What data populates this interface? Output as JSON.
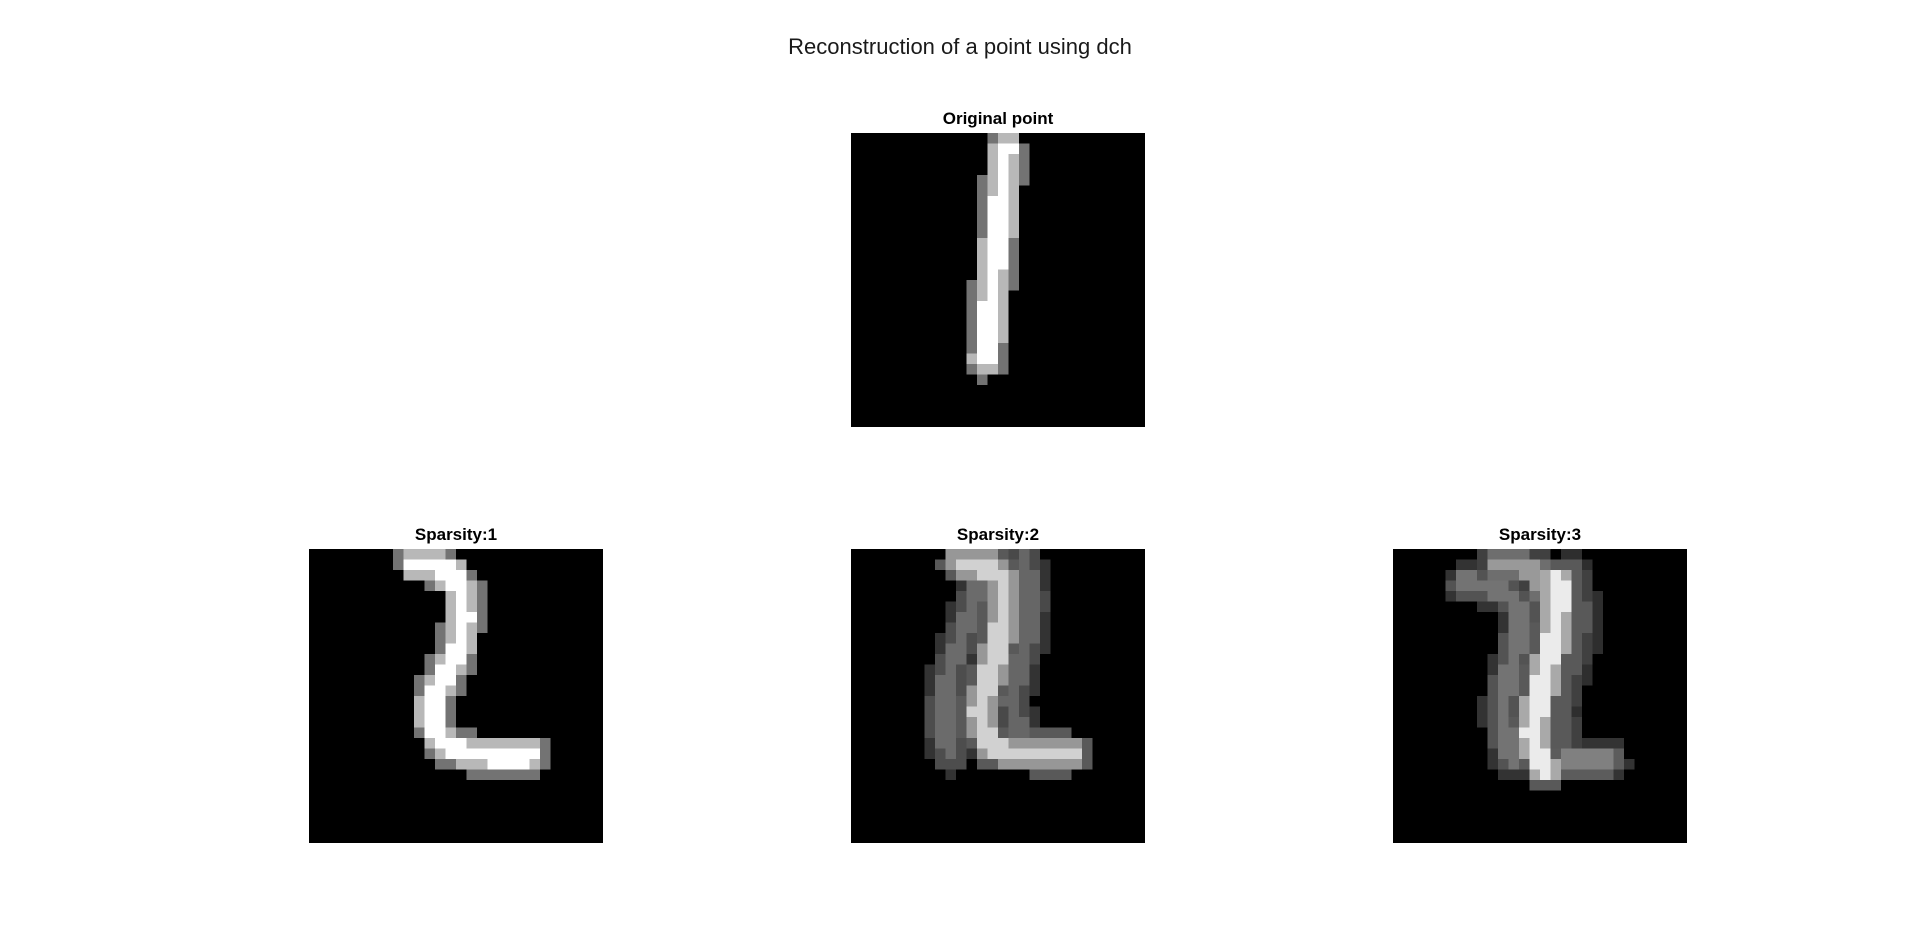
{
  "figure": {
    "title": "Reconstruction of a point using dch"
  },
  "chart_data": {
    "type": "heatmap",
    "grid": [
      28,
      28
    ],
    "colormap": "gray",
    "panels": [
      {
        "title": "Original point",
        "strokes": [
          {
            "points": [
              [
                14.7,
                1.5
              ],
              [
                14.4,
                6
              ],
              [
                13.9,
                11
              ],
              [
                13.3,
                16.5
              ],
              [
                12.9,
                21.5
              ]
            ],
            "core": 1.0,
            "halo": 0.45
          }
        ]
      },
      {
        "title": "Sparsity:1",
        "strokes": [
          {
            "points": [
              [
                10.3,
                1.4
              ],
              [
                11.8,
                1.5
              ],
              [
                13.5,
                2.4
              ],
              [
                14.5,
                3.6
              ],
              [
                14.7,
                6.5
              ],
              [
                14.3,
                9.2
              ],
              [
                13.3,
                11.4
              ],
              [
                12.2,
                13.5
              ],
              [
                11.6,
                15.6
              ],
              [
                12.4,
                17.7
              ],
              [
                13.8,
                19
              ],
              [
                16,
                19.6
              ],
              [
                19,
                19.8
              ],
              [
                21,
                19.8
              ]
            ],
            "core": 1.0,
            "halo": 0.45
          }
        ]
      },
      {
        "title": "Sparsity:2",
        "strokes": [
          {
            "points": [
              [
                10.5,
                1.4
              ],
              [
                12.5,
                1.6
              ],
              [
                14,
                2.4
              ],
              [
                14.6,
                4
              ],
              [
                14.4,
                7
              ],
              [
                13.8,
                10
              ],
              [
                13,
                12.8
              ],
              [
                12.3,
                15
              ],
              [
                12.5,
                17.2
              ],
              [
                13.5,
                18.8
              ],
              [
                15.5,
                19.4
              ],
              [
                18.5,
                19.5
              ],
              [
                20.8,
                19.5
              ]
            ],
            "core": 0.82,
            "halo": 0.35
          },
          {
            "points": [
              [
                16.5,
                1.3
              ],
              [
                17.1,
                4
              ],
              [
                17,
                7
              ],
              [
                16.3,
                10
              ],
              [
                15.6,
                12.6
              ],
              [
                15.3,
                14.5
              ],
              [
                15.6,
                16.5
              ],
              [
                16.4,
                18.3
              ]
            ],
            "core": 0.4,
            "halo": 0.2
          },
          {
            "points": [
              [
                12.5,
                2.5
              ],
              [
                11.5,
                5.5
              ],
              [
                10.5,
                8.5
              ],
              [
                9.5,
                11.5
              ],
              [
                8.8,
                14.5
              ],
              [
                8.8,
                17.2
              ],
              [
                9.5,
                19.5
              ]
            ],
            "core": 0.42,
            "halo": 0.2
          }
        ]
      },
      {
        "title": "Sparsity:3",
        "strokes": [
          {
            "points": [
              [
                15.7,
                3
              ],
              [
                15.7,
                6
              ],
              [
                15.2,
                9
              ],
              [
                14.4,
                12
              ],
              [
                13.8,
                15
              ],
              [
                13.3,
                17.6
              ],
              [
                13.6,
                19.4
              ],
              [
                14.6,
                20.8
              ]
            ],
            "core": 0.92,
            "halo": 0.35
          },
          {
            "points": [
              [
                6.8,
                3.2
              ],
              [
                8.8,
                3.6
              ],
              [
                10.8,
                4.3
              ],
              [
                12.3,
                6.2
              ],
              [
                11.8,
                9
              ],
              [
                11,
                12
              ],
              [
                10.4,
                15
              ],
              [
                10.7,
                18
              ],
              [
                11.5,
                20
              ]
            ],
            "core": 0.45,
            "halo": 0.2
          },
          {
            "points": [
              [
                10,
                1.6
              ],
              [
                12.5,
                1.6
              ],
              [
                14,
                2.6
              ],
              [
                14.5,
                4.2
              ]
            ],
            "core": 0.6,
            "halo": 0.25
          },
          {
            "points": [
              [
                17,
                2
              ],
              [
                17.8,
                5.5
              ],
              [
                17.6,
                9
              ],
              [
                16.6,
                12.5
              ],
              [
                16,
                15.5
              ],
              [
                16.2,
                18.6
              ]
            ],
            "core": 0.35,
            "halo": 0.18
          },
          {
            "points": [
              [
                14.6,
                20.6
              ],
              [
                16.5,
                20.2
              ],
              [
                18.5,
                20.2
              ],
              [
                20.5,
                20.2
              ]
            ],
            "core": 0.5,
            "halo": 0.2
          }
        ]
      }
    ]
  }
}
